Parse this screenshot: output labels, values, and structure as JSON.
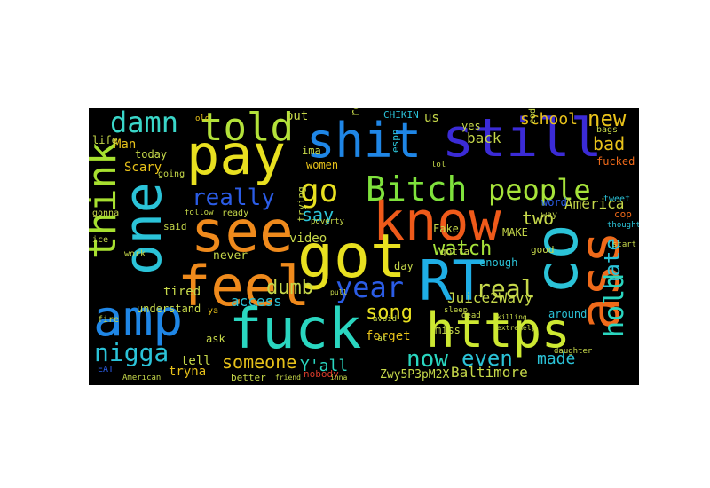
{
  "words": [
    {
      "text": "still",
      "color": "#3b2bd6"
    },
    {
      "text": "shit",
      "color": "#1f86e6"
    },
    {
      "text": "pay",
      "color": "#e8e020"
    },
    {
      "text": "damn",
      "color": "#3ad6c8"
    },
    {
      "text": "told",
      "color": "#b3e23a"
    },
    {
      "text": "new",
      "color": "#e8c21a"
    },
    {
      "text": "think",
      "color": "#a7e030"
    },
    {
      "text": "one",
      "color": "#2bc3d8"
    },
    {
      "text": "see",
      "color": "#ef8a1c"
    },
    {
      "text": "know",
      "color": "#ef5a1a"
    },
    {
      "text": "Bitch",
      "color": "#7fe23c"
    },
    {
      "text": "people",
      "color": "#a6e33a"
    },
    {
      "text": "go",
      "color": "#e8e020"
    },
    {
      "text": "got",
      "color": "#e8e020"
    },
    {
      "text": "feel",
      "color": "#ef8a1c"
    },
    {
      "text": "RT",
      "color": "#1faee6"
    },
    {
      "text": "co",
      "color": "#2bc3d8"
    },
    {
      "text": "ass",
      "color": "#ef6a1a"
    },
    {
      "text": "year",
      "color": "#2b5ce6"
    },
    {
      "text": "amp",
      "color": "#1f86e6"
    },
    {
      "text": "fuck",
      "color": "#2ad6c0"
    },
    {
      "text": "https",
      "color": "#cde832"
    },
    {
      "text": "really",
      "color": "#2b5ce6"
    },
    {
      "text": "watch",
      "color": "#a6e33a"
    },
    {
      "text": "two",
      "color": "#c6d84a"
    },
    {
      "text": "America",
      "color": "#c6d84a"
    },
    {
      "text": "say",
      "color": "#2bc3d8"
    },
    {
      "text": "real",
      "color": "#c6d84a"
    },
    {
      "text": "hate",
      "color": "#2bc3d8"
    },
    {
      "text": "hold",
      "color": "#2ad6c0"
    },
    {
      "text": "bad",
      "color": "#e8c21a"
    },
    {
      "text": "school",
      "color": "#e8c21a"
    },
    {
      "text": "nigga",
      "color": "#2bc3d8"
    },
    {
      "text": "dumb",
      "color": "#c6d84a"
    },
    {
      "text": "song",
      "color": "#e8e020"
    },
    {
      "text": "someone",
      "color": "#e8c21a"
    },
    {
      "text": "now",
      "color": "#2ad6c0"
    },
    {
      "text": "even",
      "color": "#2bc3d8"
    },
    {
      "text": "made",
      "color": "#2bc3d8"
    },
    {
      "text": "Baltimore",
      "color": "#c6d84a"
    },
    {
      "text": "Juice2Wavy",
      "color": "#c6d84a"
    },
    {
      "text": "Man",
      "color": "#e8c21a"
    },
    {
      "text": "Scary",
      "color": "#e8c21a"
    },
    {
      "text": "today",
      "color": "#c6d84a"
    },
    {
      "text": "life",
      "color": "#c6d84a"
    },
    {
      "text": "us",
      "color": "#c6d84a"
    },
    {
      "text": "back",
      "color": "#c6d84a"
    },
    {
      "text": "yes",
      "color": "#c6d84a"
    },
    {
      "text": "put",
      "color": "#c6d84a"
    },
    {
      "text": "ima",
      "color": "#c6d84a"
    },
    {
      "text": "women",
      "color": "#e8c21a"
    },
    {
      "text": "fucked",
      "color": "#ef6a1a"
    },
    {
      "text": "cop",
      "color": "#ef6a1a"
    },
    {
      "text": "word",
      "color": "#2b5ce6"
    },
    {
      "text": "MAKE",
      "color": "#c6d84a"
    },
    {
      "text": "Fake",
      "color": "#c6d84a"
    },
    {
      "text": "gotta",
      "color": "#c6d84a"
    },
    {
      "text": "day",
      "color": "#c6d84a"
    },
    {
      "text": "enough",
      "color": "#2bc3d8"
    },
    {
      "text": "good",
      "color": "#c6d84a"
    },
    {
      "text": "never",
      "color": "#c6d84a"
    },
    {
      "text": "video",
      "color": "#c6d84a"
    },
    {
      "text": "access",
      "color": "#2bc3d8"
    },
    {
      "text": "tired",
      "color": "#c6d84a"
    },
    {
      "text": "understand",
      "color": "#c6d84a"
    },
    {
      "text": "ask",
      "color": "#c6d84a"
    },
    {
      "text": "tell",
      "color": "#c6d84a"
    },
    {
      "text": "Y'all",
      "color": "#2ad6c0"
    },
    {
      "text": "forget",
      "color": "#e8c21a"
    },
    {
      "text": "miss",
      "color": "#c6d84a"
    },
    {
      "text": "around",
      "color": "#2bc3d8"
    },
    {
      "text": "tryna",
      "color": "#e8c21a"
    },
    {
      "text": "nobody",
      "color": "#d63a2a"
    },
    {
      "text": "better",
      "color": "#c6d84a"
    },
    {
      "text": "Zwy5P3pM2X",
      "color": "#c6d84a"
    },
    {
      "text": "trying",
      "color": "#c6d84a"
    },
    {
      "text": "CHIKIN",
      "color": "#2bc3d8"
    },
    {
      "text": "espn",
      "color": "#2bc3d8"
    },
    {
      "text": "gonna",
      "color": "#c6d84a"
    },
    {
      "text": "ready",
      "color": "#c6d84a"
    },
    {
      "text": "going",
      "color": "#c6d84a"
    },
    {
      "text": "said",
      "color": "#c6d84a"
    },
    {
      "text": "work",
      "color": "#c6d84a"
    },
    {
      "text": "ice",
      "color": "#c6d84a"
    },
    {
      "text": "ya",
      "color": "#e8c21a"
    },
    {
      "text": "fire",
      "color": "#c6d84a"
    },
    {
      "text": "American",
      "color": "#c6d84a"
    },
    {
      "text": "EAT",
      "color": "#2b5ce6"
    },
    {
      "text": "way",
      "color": "#c6d84a"
    },
    {
      "text": "bags",
      "color": "#c6d84a"
    },
    {
      "text": "tweet",
      "color": "#2bc3d8"
    },
    {
      "text": "code",
      "color": "#c6d84a"
    },
    {
      "text": "old",
      "color": "#e8c21a"
    },
    {
      "text": "follow",
      "color": "#c6d84a"
    },
    {
      "text": "poverty",
      "color": "#c6d84a"
    },
    {
      "text": "thought",
      "color": "#2bc3d8"
    },
    {
      "text": "start",
      "color": "#c6d84a"
    },
    {
      "text": "sleep",
      "color": "#c6d84a"
    },
    {
      "text": "dead",
      "color": "#c6d84a"
    },
    {
      "text": "avoid",
      "color": "#c6d84a"
    },
    {
      "text": "daughter",
      "color": "#c6d84a"
    },
    {
      "text": "fat",
      "color": "#c6d84a"
    },
    {
      "text": "killing",
      "color": "#c6d84a"
    },
    {
      "text": "pull",
      "color": "#c6d84a"
    },
    {
      "text": "extremely",
      "color": "#c6d84a"
    },
    {
      "text": "friend",
      "color": "#c6d84a"
    },
    {
      "text": "inna",
      "color": "#c6d84a"
    },
    {
      "text": "re",
      "color": "#c6d84a"
    },
    {
      "text": "lol",
      "color": "#c6d84a"
    }
  ]
}
